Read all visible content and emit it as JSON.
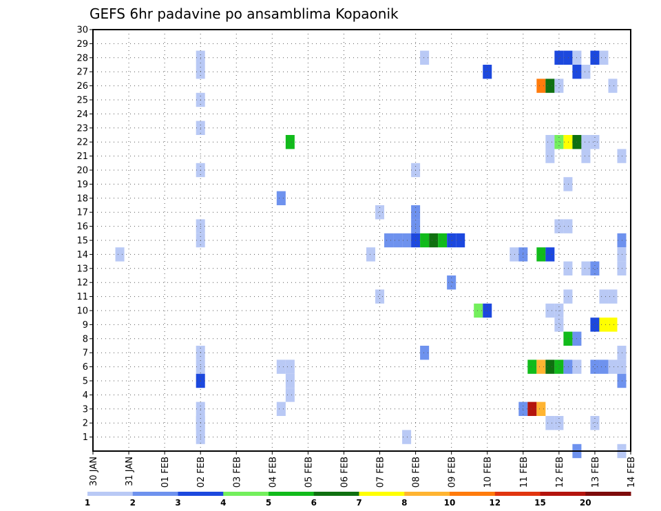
{
  "chart_data": {
    "type": "heatmap",
    "title": "GEFS 6hr padavine po ansamblima Kopaonik",
    "y_ticks": [
      1,
      2,
      3,
      4,
      5,
      6,
      7,
      8,
      9,
      10,
      11,
      12,
      13,
      14,
      15,
      16,
      17,
      18,
      19,
      20,
      21,
      22,
      23,
      24,
      25,
      26,
      27,
      28,
      29,
      30
    ],
    "ylim": [
      0,
      30
    ],
    "x_ticks": [
      "30 JAN",
      "31 JAN",
      "01 FEB",
      "02 FEB",
      "03 FEB",
      "04 FEB",
      "05 FEB",
      "06 FEB",
      "07 FEB",
      "08 FEB",
      "09 FEB",
      "10 FEB",
      "11 FEB",
      "12 FEB",
      "13 FEB",
      "14 FEB"
    ],
    "xlim_days": [
      0,
      15
    ],
    "grid": true,
    "colorbar": {
      "levels": [
        "1",
        "2",
        "3",
        "4",
        "5",
        "6",
        "7",
        "8",
        "10",
        "12",
        "15",
        "20"
      ],
      "colors": [
        "#b9c9f5",
        "#6e92ee",
        "#1c48de",
        "#73ef5c",
        "#11bb1b",
        "#0f7010",
        "#ffff00",
        "#ffb431",
        "#ff7b0c",
        "#e1350f",
        "#b4140d",
        "#7e0b0b"
      ]
    },
    "cells": [
      {
        "t": 3.0,
        "m": 28,
        "c": 0
      },
      {
        "t": 3.0,
        "m": 2,
        "c": 0
      },
      {
        "t": 3.0,
        "m": 1,
        "c": 0
      },
      {
        "t": 0.75,
        "m": 14,
        "c": 0
      },
      {
        "t": 3.0,
        "m": 27,
        "c": 0
      },
      {
        "t": 3.0,
        "m": 25,
        "c": 0
      },
      {
        "t": 3.0,
        "m": 23,
        "c": 0
      },
      {
        "t": 3.0,
        "m": 20,
        "c": 0
      },
      {
        "t": 3.0,
        "m": 16,
        "c": 0
      },
      {
        "t": 3.0,
        "m": 15,
        "c": 0
      },
      {
        "t": 3.0,
        "m": 7,
        "c": 0
      },
      {
        "t": 3.0,
        "m": 6,
        "c": 0
      },
      {
        "t": 3.0,
        "m": 5,
        "c": 2
      },
      {
        "t": 3.0,
        "m": 3,
        "c": 0
      },
      {
        "t": 3.0,
        "m": 2,
        "c": 0
      },
      {
        "t": 5.25,
        "m": 18,
        "c": 1
      },
      {
        "t": 5.25,
        "m": 6,
        "c": 0
      },
      {
        "t": 5.25,
        "m": 3,
        "c": 0
      },
      {
        "t": 5.5,
        "m": 22,
        "c": 4
      },
      {
        "t": 5.5,
        "m": 6,
        "c": 0
      },
      {
        "t": 5.5,
        "m": 5,
        "c": 0
      },
      {
        "t": 5.5,
        "m": 4,
        "c": 0
      },
      {
        "t": 7.75,
        "m": 14,
        "c": 0
      },
      {
        "t": 8.0,
        "m": 17,
        "c": 0
      },
      {
        "t": 8.0,
        "m": 11,
        "c": 0
      },
      {
        "t": 8.25,
        "m": 15,
        "c": 1
      },
      {
        "t": 8.5,
        "m": 15,
        "c": 1
      },
      {
        "t": 8.75,
        "m": 15,
        "c": 1
      },
      {
        "t": 8.75,
        "m": 1,
        "c": 0
      },
      {
        "t": 9.0,
        "m": 20,
        "c": 0
      },
      {
        "t": 9.0,
        "m": 17,
        "c": 1
      },
      {
        "t": 9.0,
        "m": 16,
        "c": 1
      },
      {
        "t": 9.0,
        "m": 15,
        "c": 2
      },
      {
        "t": 9.25,
        "m": 28,
        "c": 0
      },
      {
        "t": 9.25,
        "m": 15,
        "c": 4
      },
      {
        "t": 9.25,
        "m": 7,
        "c": 1
      },
      {
        "t": 9.5,
        "m": 15,
        "c": 5
      },
      {
        "t": 9.75,
        "m": 15,
        "c": 4
      },
      {
        "t": 10.0,
        "m": 15,
        "c": 2
      },
      {
        "t": 10.0,
        "m": 12,
        "c": 1
      },
      {
        "t": 10.25,
        "m": 15,
        "c": 2
      },
      {
        "t": 10.75,
        "m": 10,
        "c": 3
      },
      {
        "t": 11.0,
        "m": 27,
        "c": 2
      },
      {
        "t": 11.0,
        "m": 10,
        "c": 2
      },
      {
        "t": 11.75,
        "m": 14,
        "c": 0
      },
      {
        "t": 12.0,
        "m": 14,
        "c": 1
      },
      {
        "t": 12.0,
        "m": 3,
        "c": 1
      },
      {
        "t": 12.25,
        "m": 6,
        "c": 4
      },
      {
        "t": 12.25,
        "m": 3,
        "c": 10
      },
      {
        "t": 12.5,
        "m": 26,
        "c": 8
      },
      {
        "t": 12.5,
        "m": 14,
        "c": 4
      },
      {
        "t": 12.5,
        "m": 6,
        "c": 7
      },
      {
        "t": 12.5,
        "m": 3,
        "c": 7
      },
      {
        "t": 12.75,
        "m": 26,
        "c": 5
      },
      {
        "t": 12.75,
        "m": 22,
        "c": 0
      },
      {
        "t": 12.75,
        "m": 21,
        "c": 0
      },
      {
        "t": 12.75,
        "m": 14,
        "c": 2
      },
      {
        "t": 12.75,
        "m": 10,
        "c": 0
      },
      {
        "t": 12.75,
        "m": 6,
        "c": 5
      },
      {
        "t": 12.75,
        "m": 2,
        "c": 0
      },
      {
        "t": 13.0,
        "m": 28,
        "c": 2
      },
      {
        "t": 13.0,
        "m": 26,
        "c": 0
      },
      {
        "t": 13.0,
        "m": 22,
        "c": 3
      },
      {
        "t": 13.0,
        "m": 16,
        "c": 0
      },
      {
        "t": 13.0,
        "m": 10,
        "c": 0
      },
      {
        "t": 13.0,
        "m": 9,
        "c": 0
      },
      {
        "t": 13.0,
        "m": 6,
        "c": 4
      },
      {
        "t": 13.0,
        "m": 2,
        "c": 0
      },
      {
        "t": 13.25,
        "m": 28,
        "c": 2
      },
      {
        "t": 13.25,
        "m": 22,
        "c": 6
      },
      {
        "t": 13.25,
        "m": 19,
        "c": 0
      },
      {
        "t": 13.25,
        "m": 16,
        "c": 0
      },
      {
        "t": 13.25,
        "m": 13,
        "c": 0
      },
      {
        "t": 13.25,
        "m": 11,
        "c": 0
      },
      {
        "t": 13.25,
        "m": 8,
        "c": 4
      },
      {
        "t": 13.25,
        "m": 6,
        "c": 1
      },
      {
        "t": 13.5,
        "m": 28,
        "c": 0
      },
      {
        "t": 13.5,
        "m": 27,
        "c": 2
      },
      {
        "t": 13.5,
        "m": 22,
        "c": 5
      },
      {
        "t": 13.5,
        "m": 8,
        "c": 1
      },
      {
        "t": 13.5,
        "m": 6,
        "c": 0
      },
      {
        "t": 13.5,
        "m": 0,
        "c": 1
      },
      {
        "t": 13.75,
        "m": 27,
        "c": 0
      },
      {
        "t": 13.75,
        "m": 22,
        "c": 0
      },
      {
        "t": 13.75,
        "m": 21,
        "c": 0
      },
      {
        "t": 13.75,
        "m": 13,
        "c": 0
      },
      {
        "t": 14.0,
        "m": 28,
        "c": 2
      },
      {
        "t": 14.0,
        "m": 22,
        "c": 0
      },
      {
        "t": 14.0,
        "m": 13,
        "c": 1
      },
      {
        "t": 14.0,
        "m": 9,
        "c": 2
      },
      {
        "t": 14.0,
        "m": 6,
        "c": 1
      },
      {
        "t": 14.0,
        "m": 2,
        "c": 0
      },
      {
        "t": 14.25,
        "m": 28,
        "c": 0
      },
      {
        "t": 14.25,
        "m": 11,
        "c": 0
      },
      {
        "t": 14.25,
        "m": 9,
        "c": 6
      },
      {
        "t": 14.25,
        "m": 6,
        "c": 1
      },
      {
        "t": 14.5,
        "m": 26,
        "c": 0
      },
      {
        "t": 14.5,
        "m": 11,
        "c": 0
      },
      {
        "t": 14.5,
        "m": 9,
        "c": 6
      },
      {
        "t": 14.5,
        "m": 6,
        "c": 0
      },
      {
        "t": 14.75,
        "m": 21,
        "c": 0
      },
      {
        "t": 14.75,
        "m": 15,
        "c": 1
      },
      {
        "t": 14.75,
        "m": 14,
        "c": 0
      },
      {
        "t": 14.75,
        "m": 13,
        "c": 0
      },
      {
        "t": 14.75,
        "m": 7,
        "c": 0
      },
      {
        "t": 14.75,
        "m": 6,
        "c": 0
      },
      {
        "t": 14.75,
        "m": 5,
        "c": 1
      },
      {
        "t": 14.75,
        "m": 0,
        "c": 0
      }
    ]
  }
}
